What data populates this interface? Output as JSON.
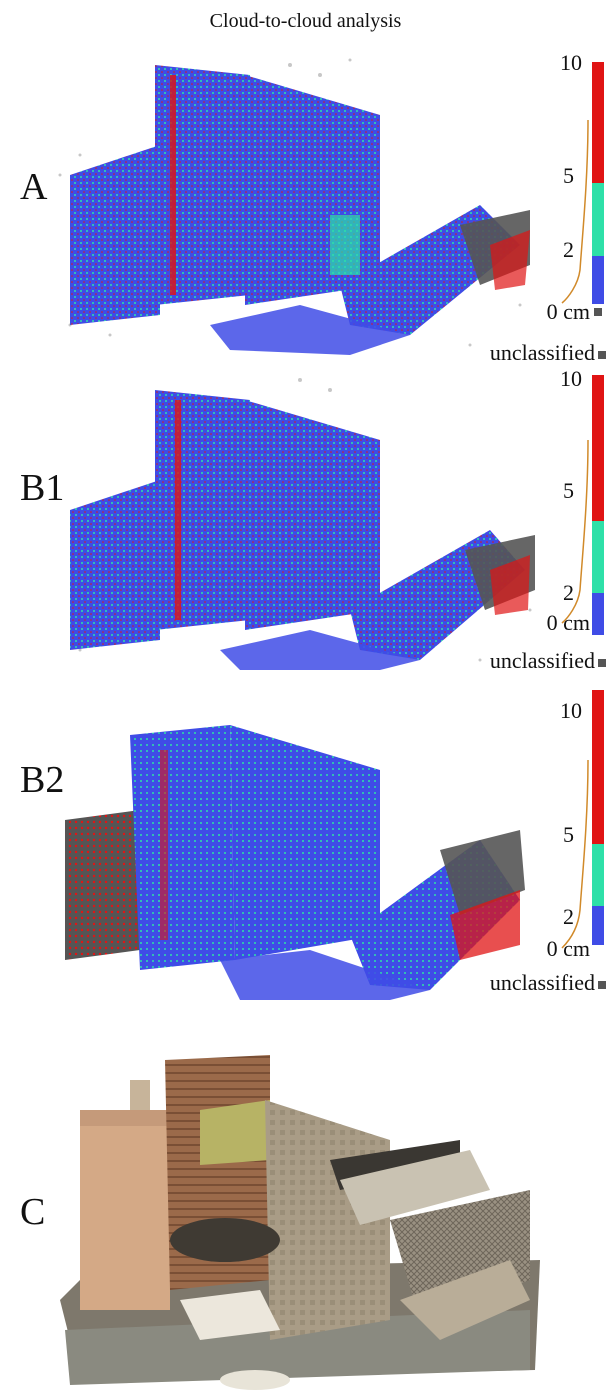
{
  "title": "Cloud-to-cloud analysis",
  "colors": {
    "blue": "#3f4ce6",
    "cyan": "#2ee0a8",
    "red": "#e01414",
    "gray": "#555555",
    "curve": "#d18a2a"
  },
  "panels": [
    {
      "label": "A",
      "scale": {
        "top": "10",
        "mid": "5",
        "low": "2",
        "zero": "0 cm"
      },
      "unclassified": "unclassified"
    },
    {
      "label": "B1",
      "scale": {
        "top": "10",
        "mid": "5",
        "low": "2",
        "zero": "0 cm"
      },
      "unclassified": "unclassified"
    },
    {
      "label": "B2",
      "scale": {
        "top": "10",
        "mid": "5",
        "low": "2",
        "zero": "0 cm"
      },
      "unclassified": "unclassified"
    },
    {
      "label": "C"
    }
  ]
}
